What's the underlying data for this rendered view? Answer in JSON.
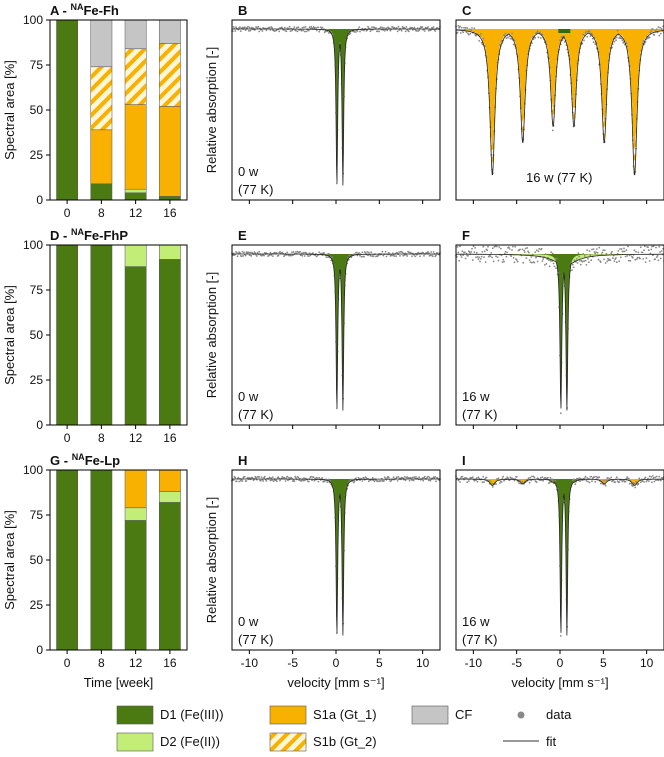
{
  "figure": {
    "legend_items": [
      {
        "label": "D1 (Fe(III))",
        "kind": "box",
        "color": "#4c7a12"
      },
      {
        "label": "D2 (Fe(II))",
        "kind": "box",
        "color": "#c2ee78"
      },
      {
        "label": "S1a (Gt_1)",
        "kind": "box",
        "color": "#f9b100"
      },
      {
        "label": "S1b (Gt_2)",
        "kind": "hatch",
        "color": "#f9b100"
      },
      {
        "label": "CF",
        "kind": "box",
        "color": "#c5c5c5"
      },
      {
        "label": "data",
        "kind": "dot",
        "color": "#888888"
      },
      {
        "label": "fit",
        "kind": "line",
        "color": "#333333"
      }
    ]
  },
  "chart_data": [
    {
      "type": "bar",
      "stacked": true,
      "title_letter": "A",
      "title_prefix": " - ",
      "title_sup": "NA",
      "title_main": "Fe-Fh",
      "categories": [
        "0",
        "8",
        "12",
        "16"
      ],
      "series": [
        {
          "name": "D1 (Fe(III))",
          "values": [
            100,
            9,
            4,
            2
          ],
          "color": "#4c7a12",
          "pattern": "solid"
        },
        {
          "name": "D2 (Fe(II))",
          "values": [
            0,
            0,
            2,
            0
          ],
          "color": "#c2ee78",
          "pattern": "solid"
        },
        {
          "name": "S1a (Gt_1)",
          "values": [
            0,
            30,
            47,
            50
          ],
          "color": "#f9b100",
          "pattern": "solid"
        },
        {
          "name": "S1b (Gt_2)",
          "values": [
            0,
            35,
            31,
            35
          ],
          "color": "#f9b100",
          "pattern": "hatch"
        },
        {
          "name": "CF",
          "values": [
            0,
            26,
            16,
            13
          ],
          "color": "#c5c5c5",
          "pattern": "solid"
        }
      ],
      "ylabel": "Spectral area [%]",
      "ylim": [
        0,
        100
      ],
      "yticks": [
        0,
        25,
        50,
        75,
        100
      ],
      "xlabel": ""
    },
    {
      "type": "bar",
      "stacked": true,
      "title_letter": "D",
      "title_prefix": " - ",
      "title_sup": "NA",
      "title_main": "Fe-FhP",
      "categories": [
        "0",
        "8",
        "12",
        "16"
      ],
      "series": [
        {
          "name": "D1 (Fe(III))",
          "values": [
            100,
            100,
            88,
            92
          ],
          "color": "#4c7a12",
          "pattern": "solid"
        },
        {
          "name": "D2 (Fe(II))",
          "values": [
            0,
            0,
            12,
            8
          ],
          "color": "#c2ee78",
          "pattern": "solid"
        }
      ],
      "ylabel": "Spectral area [%]",
      "ylim": [
        0,
        100
      ],
      "yticks": [
        0,
        25,
        50,
        75,
        100
      ],
      "xlabel": ""
    },
    {
      "type": "bar",
      "stacked": true,
      "title_letter": "G",
      "title_prefix": " - ",
      "title_sup": "NA",
      "title_main": "Fe-Lp",
      "categories": [
        "0",
        "8",
        "12",
        "16"
      ],
      "series": [
        {
          "name": "D1 (Fe(III))",
          "values": [
            100,
            100,
            72,
            82
          ],
          "color": "#4c7a12",
          "pattern": "solid"
        },
        {
          "name": "D2 (Fe(II))",
          "values": [
            0,
            0,
            7,
            6
          ],
          "color": "#c2ee78",
          "pattern": "solid"
        },
        {
          "name": "S1a (Gt_1)",
          "values": [
            0,
            0,
            21,
            12
          ],
          "color": "#f9b100",
          "pattern": "solid"
        }
      ],
      "ylabel": "Spectral area [%]",
      "ylim": [
        0,
        100
      ],
      "yticks": [
        0,
        25,
        50,
        75,
        100
      ],
      "xlabel": "Time [week]"
    },
    {
      "type": "line",
      "title_letter": "B",
      "annotation": [
        "0 w",
        "(77 K)"
      ],
      "spectrum": "doublet",
      "doublet": {
        "center": 0.45,
        "split": 0.7,
        "depth": 1.0,
        "width": 0.22
      },
      "noise": 0.015,
      "xlim": [
        -12,
        12
      ],
      "xticks": [
        -10,
        -5,
        0,
        5,
        10
      ],
      "xlabel": "",
      "ylabel": "Relative absorption [-]"
    },
    {
      "type": "line",
      "title_letter": "C",
      "annotation": [
        "16 w (77 K)"
      ],
      "spectrum": "sextets",
      "sextet_lines": [
        -7.8,
        -4.3,
        -0.8,
        1.6,
        5.1,
        8.6
      ],
      "sextet_depths": [
        0.9,
        0.7,
        0.6,
        0.6,
        0.7,
        0.9
      ],
      "noise": 0.03,
      "xlim": [
        -12,
        12
      ],
      "xticks": [
        -10,
        -5,
        0,
        5,
        10
      ],
      "xlabel": "",
      "ylabel": ""
    },
    {
      "type": "line",
      "title_letter": "E",
      "annotation": [
        "0 w",
        "(77 K)"
      ],
      "spectrum": "doublet",
      "doublet": {
        "center": 0.45,
        "split": 0.7,
        "depth": 1.0,
        "width": 0.22
      },
      "noise": 0.015,
      "xlim": [
        -12,
        12
      ],
      "xticks": [
        -10,
        -5,
        0,
        5,
        10
      ],
      "xlabel": "",
      "ylabel": "Relative absorption [-]"
    },
    {
      "type": "line",
      "title_letter": "F",
      "annotation": [
        "16 w",
        "(77 K)"
      ],
      "spectrum": "doublet",
      "doublet": {
        "center": 0.45,
        "split": 0.7,
        "depth": 1.0,
        "width": 0.25
      },
      "noise": 0.05,
      "xlim": [
        -12,
        12
      ],
      "xticks": [
        -10,
        -5,
        0,
        5,
        10
      ],
      "xlabel": "",
      "ylabel": ""
    },
    {
      "type": "line",
      "title_letter": "H",
      "annotation": [
        "0 w",
        "(77 K)"
      ],
      "spectrum": "doublet",
      "doublet": {
        "center": 0.45,
        "split": 0.7,
        "depth": 1.0,
        "width": 0.22
      },
      "noise": 0.015,
      "xlim": [
        -12,
        12
      ],
      "xticks": [
        -10,
        -5,
        0,
        5,
        10
      ],
      "xlabel": "velocity [mm s⁻¹]",
      "ylabel": "Relative absorption [-]"
    },
    {
      "type": "line",
      "title_letter": "I",
      "annotation": [
        "16 w",
        "(77 K)"
      ],
      "spectrum": "doublet_plus_sextet",
      "doublet": {
        "center": 0.45,
        "split": 0.7,
        "depth": 1.0,
        "width": 0.22
      },
      "sextet_lines": [
        -7.8,
        -4.3,
        -0.8,
        1.6,
        5.1,
        8.6
      ],
      "sextet_depths": [
        0.04,
        0.03,
        0.02,
        0.02,
        0.03,
        0.04
      ],
      "noise": 0.02,
      "xlim": [
        -12,
        12
      ],
      "xticks": [
        -10,
        -5,
        0,
        5,
        10
      ],
      "xlabel": "velocity [mm s⁻¹]",
      "ylabel": ""
    }
  ]
}
